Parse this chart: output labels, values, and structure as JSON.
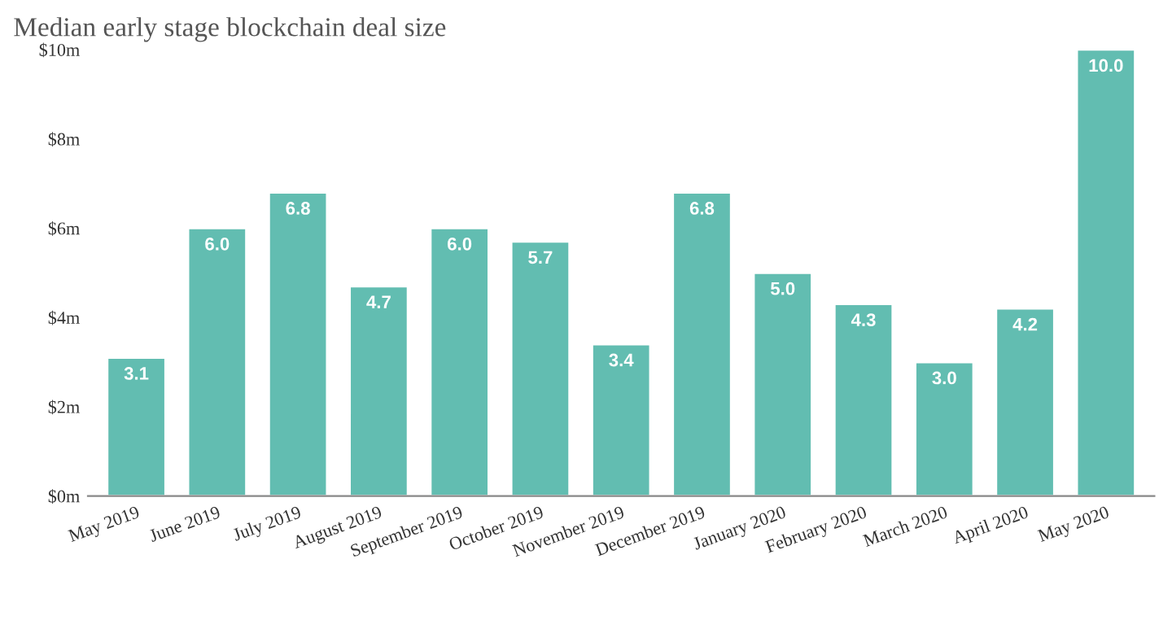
{
  "chart_data": {
    "type": "bar",
    "title": "Median early stage blockchain deal size",
    "categories": [
      "May 2019",
      "June 2019",
      "July 2019",
      "August 2019",
      "September 2019",
      "October 2019",
      "November 2019",
      "December 2019",
      "January 2020",
      "February 2020",
      "March 2020",
      "April 2020",
      "May 2020"
    ],
    "values": [
      3.1,
      6.0,
      6.8,
      4.7,
      6.0,
      5.7,
      3.4,
      6.8,
      5.0,
      4.3,
      3.0,
      4.2,
      10.0
    ],
    "value_labels": [
      "3.1",
      "6.0",
      "6.8",
      "4.7",
      "6.0",
      "5.7",
      "3.4",
      "6.8",
      "5.0",
      "4.3",
      "3.0",
      "4.2",
      "10.0"
    ],
    "color": "#62bdb1",
    "ylim": [
      0,
      10
    ],
    "yticks": [
      {
        "value": 0,
        "label": "$0m"
      },
      {
        "value": 2,
        "label": "$2m"
      },
      {
        "value": 4,
        "label": "$4m"
      },
      {
        "value": 6,
        "label": "$6m"
      },
      {
        "value": 8,
        "label": "$8m"
      },
      {
        "value": 10,
        "label": "$10m"
      }
    ],
    "grid": false,
    "legend": false
  }
}
